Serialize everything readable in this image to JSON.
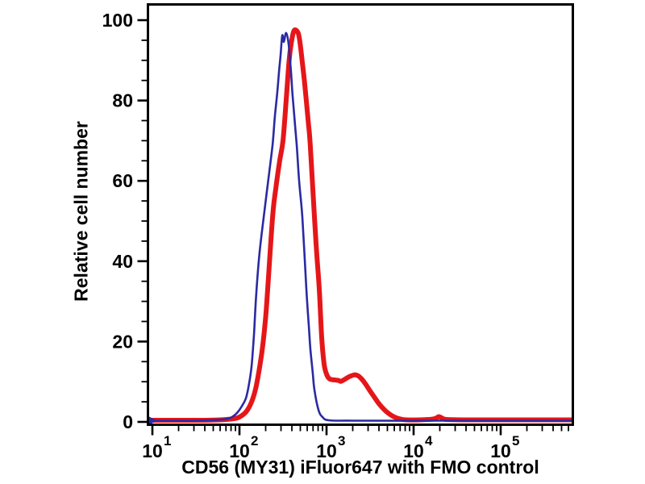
{
  "chart_data": {
    "type": "line",
    "subtype": "flow-cytometry-histogram-overlay",
    "title": "",
    "xlabel": "CD56 (MY31) iFluor647 with FMO control",
    "ylabel": "Relative cell number",
    "x_scale": "log10",
    "xlim": [
      8.8,
      690000
    ],
    "ylim": [
      0,
      104
    ],
    "x_tick_exponents": [
      1,
      2,
      3,
      4,
      5
    ],
    "x_major_ticks": [
      10,
      100,
      1000,
      10000,
      100000
    ],
    "y_ticks": [
      0,
      20,
      40,
      60,
      80,
      100
    ],
    "y_minor_step": 5,
    "grid": false,
    "legend_position": "none",
    "axis_color": "#000000",
    "background_color": "#ffffff",
    "series": [
      {
        "name": "CD56 (MY31) iFluor647",
        "color": "#e51619",
        "stroke_width": 6,
        "start_marker": "none",
        "points": [
          [
            8.8,
            0.4
          ],
          [
            20,
            0.4
          ],
          [
            37,
            0.4
          ],
          [
            60,
            0.5
          ],
          [
            86,
            0.8
          ],
          [
            100,
            1.2
          ],
          [
            119,
            2.5
          ],
          [
            138,
            5
          ],
          [
            156,
            9
          ],
          [
            180,
            17
          ],
          [
            198,
            25
          ],
          [
            211,
            33
          ],
          [
            240,
            51
          ],
          [
            261,
            58
          ],
          [
            290,
            65
          ],
          [
            316,
            70
          ],
          [
            344,
            80
          ],
          [
            372,
            90
          ],
          [
            395,
            94.5
          ],
          [
            420,
            97.2
          ],
          [
            447,
            97.5
          ],
          [
            477,
            96.5
          ],
          [
            506,
            93
          ],
          [
            556,
            85
          ],
          [
            615,
            75
          ],
          [
            650,
            69
          ],
          [
            726,
            51
          ],
          [
            771,
            42
          ],
          [
            826,
            33
          ],
          [
            880,
            21
          ],
          [
            937,
            14.5
          ],
          [
            995,
            12
          ],
          [
            1070,
            10.8
          ],
          [
            1172,
            10.5
          ],
          [
            1281,
            10.4
          ],
          [
            1377,
            10.3
          ],
          [
            1468,
            10.1
          ],
          [
            1620,
            10.6
          ],
          [
            1845,
            11.3
          ],
          [
            2100,
            11.7
          ],
          [
            2290,
            11.5
          ],
          [
            2550,
            10.6
          ],
          [
            2830,
            9.3
          ],
          [
            3140,
            7.8
          ],
          [
            3500,
            6.3
          ],
          [
            3880,
            4.9
          ],
          [
            4310,
            3.7
          ],
          [
            4790,
            2.7
          ],
          [
            5320,
            1.9
          ],
          [
            5900,
            1.3
          ],
          [
            6810,
            0.8
          ],
          [
            8400,
            0.5
          ],
          [
            15000,
            0.6
          ],
          [
            18000,
            0.9
          ],
          [
            19500,
            1.3
          ],
          [
            21500,
            0.9
          ],
          [
            24000,
            0.6
          ],
          [
            40000,
            0.5
          ],
          [
            100000,
            0.5
          ],
          [
            300000,
            0.5
          ],
          [
            660000,
            0.5
          ]
        ]
      },
      {
        "name": "FMO control",
        "color": "#2a2aa4",
        "stroke_width": 2.6,
        "start_marker": "right-arrow",
        "points": [
          [
            8.8,
            0.3
          ],
          [
            20,
            0.3
          ],
          [
            30,
            0.3
          ],
          [
            56,
            0.5
          ],
          [
            74,
            0.8
          ],
          [
            86,
            1.5
          ],
          [
            96,
            2.5
          ],
          [
            107,
            4
          ],
          [
            119,
            6
          ],
          [
            129,
            9.5
          ],
          [
            138,
            14
          ],
          [
            147,
            22
          ],
          [
            156,
            32
          ],
          [
            170,
            42
          ],
          [
            190,
            51
          ],
          [
            211,
            59
          ],
          [
            240,
            69
          ],
          [
            255,
            76
          ],
          [
            272,
            82
          ],
          [
            284,
            87
          ],
          [
            296,
            91
          ],
          [
            310,
            96.2
          ],
          [
            323,
            94.6
          ],
          [
            344,
            96.8
          ],
          [
            367,
            94
          ],
          [
            391,
            87
          ],
          [
            408,
            81
          ],
          [
            454,
            69
          ],
          [
            484,
            60
          ],
          [
            527,
            51
          ],
          [
            587,
            33
          ],
          [
            625,
            24
          ],
          [
            653,
            18
          ],
          [
            696,
            12
          ],
          [
            726,
            8
          ],
          [
            808,
            3
          ],
          [
            899,
            1.2
          ],
          [
            1066,
            0.4
          ],
          [
            2000,
            0.3
          ],
          [
            20000,
            0.3
          ],
          [
            200000,
            0.3
          ],
          [
            660000,
            0.3
          ]
        ]
      }
    ]
  }
}
